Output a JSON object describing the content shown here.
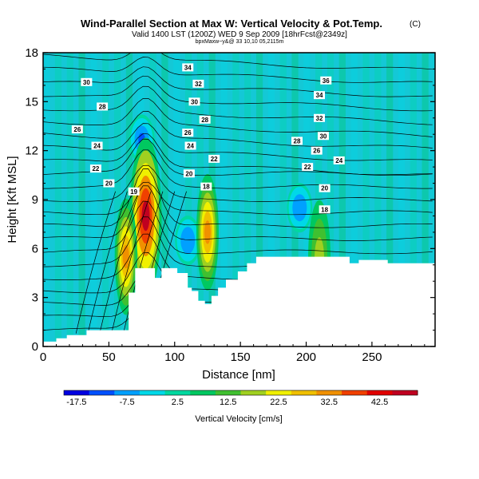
{
  "chart_data": {
    "type": "heatmap",
    "title": "Wind-Parallel Section at Max W: Vertical Velocity & Pot.Temp.",
    "title_mark": "(C)",
    "subtitle": "Valid 1400 LST (1200Z) WED 9 Sep 2009 [18hrFcst@2349z]",
    "subtitle2": "bpxMaxw~y&@ 33 10,10 05,2115m",
    "xlabel": "Distance [nm]",
    "ylabel": "Height [Kft MSL]",
    "xlim": [
      0,
      298
    ],
    "ylim": [
      0,
      18
    ],
    "xticks": [
      0,
      50,
      100,
      150,
      200,
      250
    ],
    "yticks": [
      0,
      3,
      6,
      9,
      12,
      15,
      18
    ],
    "colorbar": {
      "label": "Vertical Velocity [cm/s]",
      "range": [
        -20,
        50
      ],
      "tick_labels": [
        -17.5,
        -7.5,
        2.5,
        12.5,
        22.5,
        32.5,
        42.5
      ],
      "colors": [
        "#0000e0",
        "#0050ff",
        "#00a0ff",
        "#00d8e8",
        "#00d8a0",
        "#00c860",
        "#40c030",
        "#a0d020",
        "#f0f000",
        "#f0c000",
        "#f09000",
        "#f04000",
        "#e00000",
        "#c00020"
      ]
    },
    "updrafts": [
      {
        "x_nm": 78,
        "height_kft": 8.0,
        "w_max": 45
      },
      {
        "x_nm": 63,
        "height_kft": 5.5,
        "w_max": 30
      },
      {
        "x_nm": 125,
        "height_kft": 7.0,
        "w_max": 30
      },
      {
        "x_nm": 210,
        "height_kft": 5.4,
        "w_max": 18
      }
    ],
    "downdrafts": [
      {
        "x_nm": 75,
        "height_kft": 12.7,
        "w_min": -12
      },
      {
        "x_nm": 195,
        "height_kft": 8.5,
        "w_min": -10
      },
      {
        "x_nm": 110,
        "height_kft": 6.5,
        "w_min": -9
      }
    ],
    "theta_contour_labels": [
      {
        "text": "34",
        "x_nm": 110,
        "height_kft": 17.1
      },
      {
        "text": "30",
        "x_nm": 33,
        "height_kft": 16.2
      },
      {
        "text": "32",
        "x_nm": 118,
        "height_kft": 16.1
      },
      {
        "text": "36",
        "x_nm": 215,
        "height_kft": 16.3
      },
      {
        "text": "28",
        "x_nm": 45,
        "height_kft": 14.7
      },
      {
        "text": "30",
        "x_nm": 115,
        "height_kft": 15.0
      },
      {
        "text": "34",
        "x_nm": 210,
        "height_kft": 15.4
      },
      {
        "text": "26",
        "x_nm": 26,
        "height_kft": 13.3
      },
      {
        "text": "28",
        "x_nm": 123,
        "height_kft": 13.9
      },
      {
        "text": "32",
        "x_nm": 210,
        "height_kft": 14.0
      },
      {
        "text": "26",
        "x_nm": 110,
        "height_kft": 13.1
      },
      {
        "text": "30",
        "x_nm": 213,
        "height_kft": 12.9
      },
      {
        "text": "28",
        "x_nm": 193,
        "height_kft": 12.6
      },
      {
        "text": "24",
        "x_nm": 41,
        "height_kft": 12.3
      },
      {
        "text": "24",
        "x_nm": 112,
        "height_kft": 12.3
      },
      {
        "text": "26",
        "x_nm": 208,
        "height_kft": 12.0
      },
      {
        "text": "24",
        "x_nm": 225,
        "height_kft": 11.4
      },
      {
        "text": "22",
        "x_nm": 130,
        "height_kft": 11.5
      },
      {
        "text": "22",
        "x_nm": 40,
        "height_kft": 10.9
      },
      {
        "text": "22",
        "x_nm": 201,
        "height_kft": 11.0
      },
      {
        "text": "20",
        "x_nm": 111,
        "height_kft": 10.6
      },
      {
        "text": "20",
        "x_nm": 50,
        "height_kft": 10.0
      },
      {
        "text": "19",
        "x_nm": 69,
        "height_kft": 9.5
      },
      {
        "text": "18",
        "x_nm": 124,
        "height_kft": 9.8
      },
      {
        "text": "20",
        "x_nm": 214,
        "height_kft": 9.7
      },
      {
        "text": "18",
        "x_nm": 214,
        "height_kft": 8.4
      }
    ],
    "terrain_profile": [
      [
        0,
        0.3
      ],
      [
        10,
        0.3
      ],
      [
        10,
        0.5
      ],
      [
        18,
        0.5
      ],
      [
        18,
        0.7
      ],
      [
        33,
        0.7
      ],
      [
        33,
        1.0
      ],
      [
        65,
        1.0
      ],
      [
        65,
        3.3
      ],
      [
        70,
        3.3
      ],
      [
        70,
        4.8
      ],
      [
        85,
        4.8
      ],
      [
        85,
        4.2
      ],
      [
        90,
        4.2
      ],
      [
        90,
        4.8
      ],
      [
        102,
        4.8
      ],
      [
        102,
        4.5
      ],
      [
        110,
        4.5
      ],
      [
        110,
        3.6
      ],
      [
        113,
        3.6
      ],
      [
        113,
        3.4
      ],
      [
        118,
        3.4
      ],
      [
        118,
        2.8
      ],
      [
        123,
        2.8
      ],
      [
        123,
        2.6
      ],
      [
        128,
        2.6
      ],
      [
        128,
        3.1
      ],
      [
        133,
        3.1
      ],
      [
        133,
        3.6
      ],
      [
        139,
        3.6
      ],
      [
        139,
        4.1
      ],
      [
        148,
        4.1
      ],
      [
        148,
        4.6
      ],
      [
        155,
        4.6
      ],
      [
        155,
        5.1
      ],
      [
        162,
        5.1
      ],
      [
        162,
        5.5
      ],
      [
        233,
        5.5
      ],
      [
        233,
        5.1
      ],
      [
        240,
        5.1
      ],
      [
        240,
        5.3
      ],
      [
        262,
        5.3
      ],
      [
        262,
        5.1
      ],
      [
        280,
        5.1
      ],
      [
        280,
        5.1
      ],
      [
        298,
        5.1
      ]
    ]
  }
}
